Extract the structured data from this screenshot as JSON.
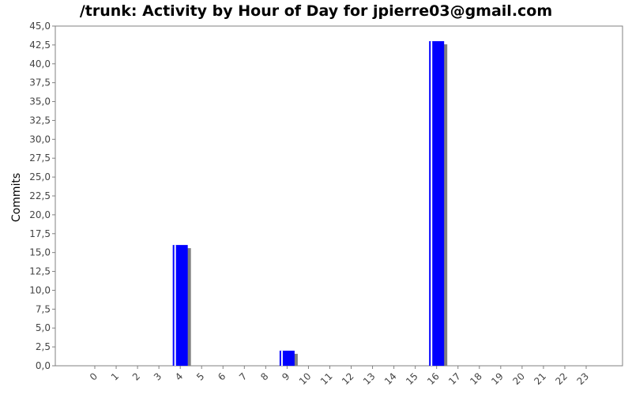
{
  "chart_data": {
    "type": "bar",
    "title": "/trunk: Activity by Hour of Day for jpierre03@gmail.com",
    "xlabel": "",
    "ylabel": "Commits",
    "categories": [
      "0",
      "1",
      "2",
      "3",
      "4",
      "5",
      "6",
      "7",
      "8",
      "9",
      "10",
      "11",
      "12",
      "13",
      "14",
      "15",
      "16",
      "17",
      "18",
      "19",
      "20",
      "21",
      "22",
      "23"
    ],
    "series": [
      {
        "values": [
          0,
          0,
          0,
          0,
          16,
          0,
          0,
          0,
          0,
          2,
          0,
          0,
          0,
          0,
          0,
          0,
          43,
          0,
          0,
          0,
          0,
          0,
          0,
          0
        ]
      }
    ],
    "ylim": [
      0,
      45
    ],
    "yticks": [
      "0,0",
      "2,5",
      "5,0",
      "7,5",
      "10,0",
      "12,5",
      "15,0",
      "17,5",
      "20,0",
      "22,5",
      "25,0",
      "27,5",
      "30,0",
      "32,5",
      "35,0",
      "37,5",
      "40,0",
      "42,5",
      "45,0"
    ],
    "grid": false,
    "legend": "none",
    "bar_color": "#0000ff",
    "shadow_color": "#808080"
  }
}
